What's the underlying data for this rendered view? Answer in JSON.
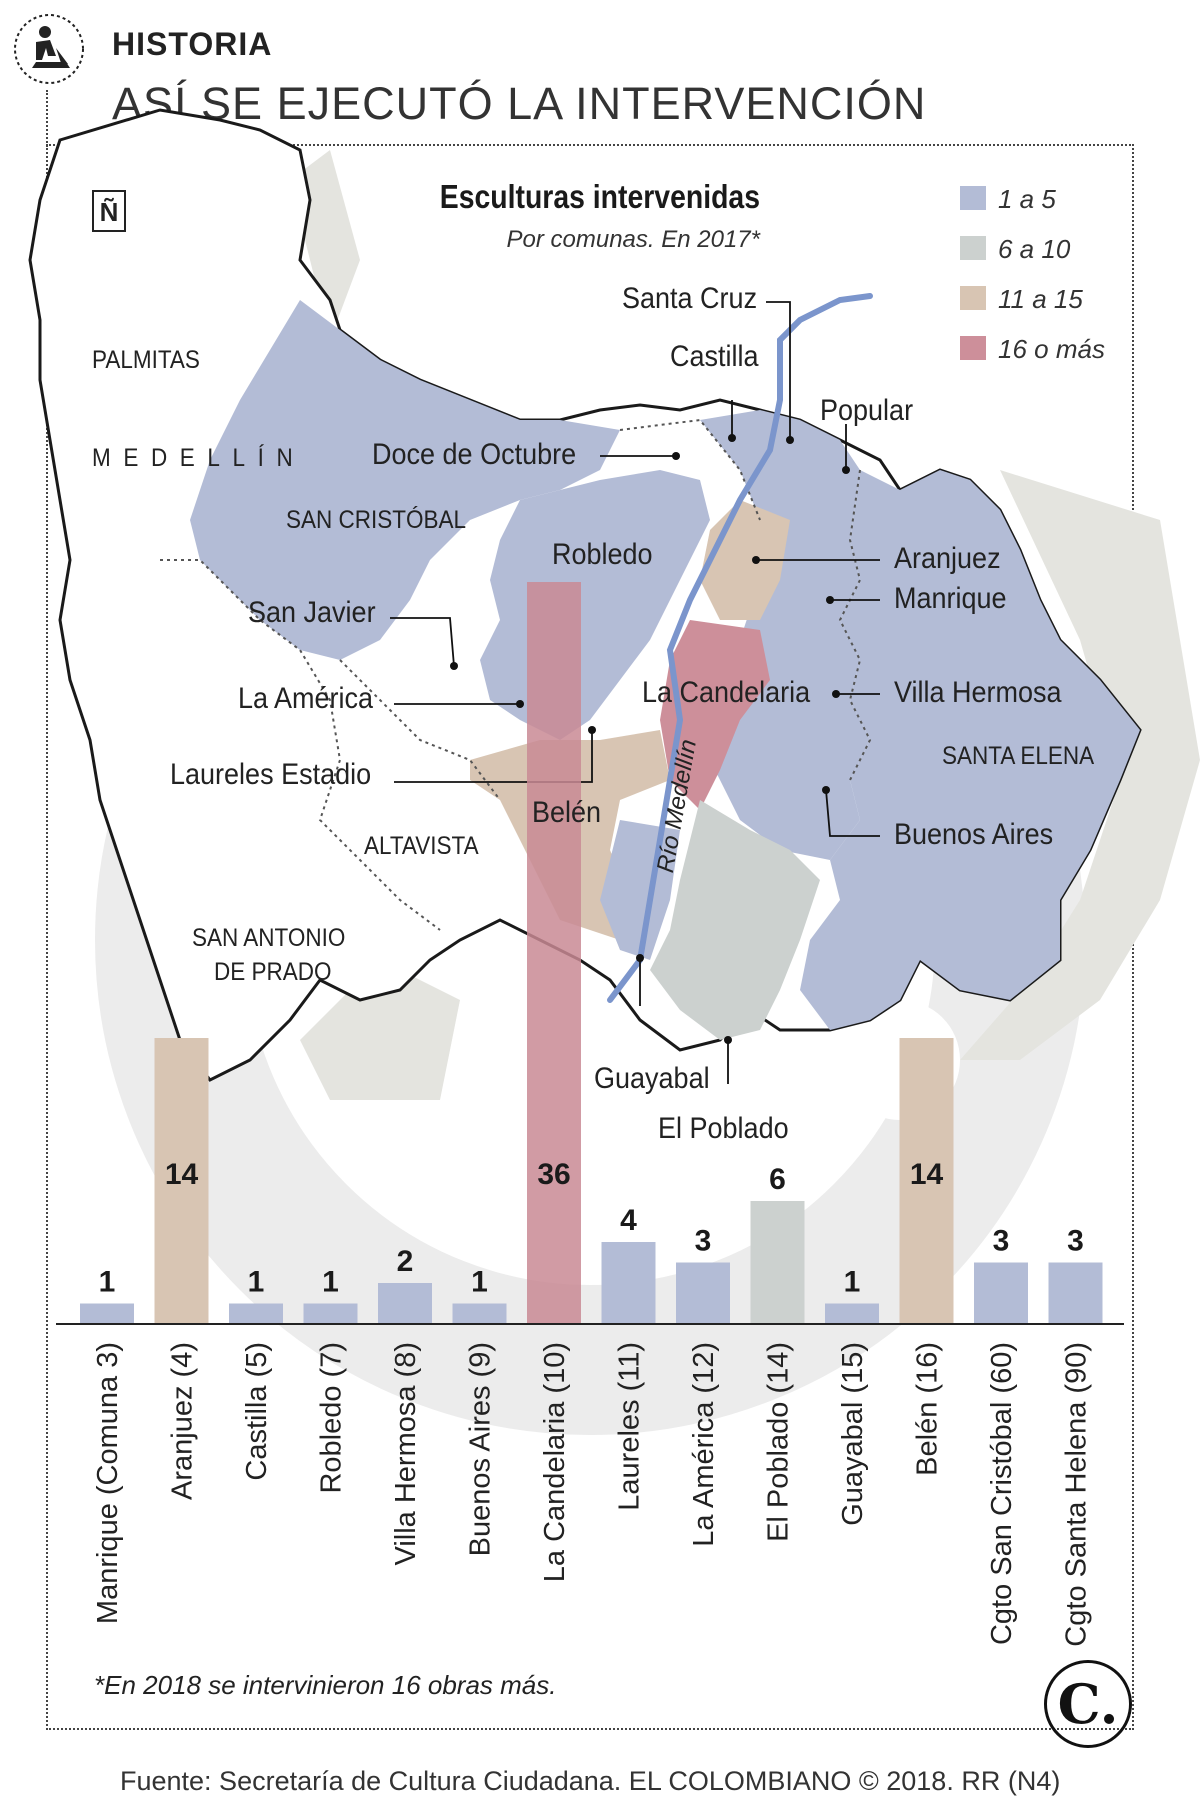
{
  "header": {
    "section_label": "HISTORIA",
    "headline": "ASÍ SE EJECUTÓ LA INTERVENCIÓN"
  },
  "map": {
    "title": "Esculturas intervenidas",
    "subtitle": "Por comunas. En 2017*",
    "north_symbol": "Ñ",
    "river_label": "Río Medellín",
    "legend": [
      {
        "label": "1 a 5",
        "color": "#b3bcd6"
      },
      {
        "label": "6 a 10",
        "color": "#ccd1cf"
      },
      {
        "label": "11 a 15",
        "color": "#d8c5b3"
      },
      {
        "label": "16 o más",
        "color": "#cd8f9a"
      }
    ],
    "labels": {
      "palmitas": "PALMITAS",
      "medellin": "MEDELLÍN",
      "san_cristobal": "SAN CRISTÓBAL",
      "altavista": "ALTAVISTA",
      "san_antonio_1": "SAN ANTONIO",
      "san_antonio_2": "DE PRADO",
      "santa_elena": "SANTA ELENA",
      "santa_cruz": "Santa Cruz",
      "castilla": "Castilla",
      "popular": "Popular",
      "doce_de_octubre": "Doce de Octubre",
      "robledo": "Robledo",
      "aranjuez": "Aranjuez",
      "manrique": "Manrique",
      "san_javier": "San Javier",
      "la_america": "La América",
      "la_candelaria": "La Candelaria",
      "villa_hermosa": "Villa Hermosa",
      "laureles_estadio": "Laureles Estadio",
      "belen": "Belén",
      "buenos_aires": "Buenos Aires",
      "guayabal": "Guayabal",
      "el_poblado": "El Poblado"
    }
  },
  "chart_data": {
    "type": "bar",
    "categories": [
      "Manrique (Comuna 3)",
      "Aranjuez (4)",
      "Castilla (5)",
      "Robledo (7)",
      "Villa Hermosa (8)",
      "Buenos Aires (9)",
      "La Candelaria (10)",
      "Laureles (11)",
      "La América (12)",
      "El Poblado (14)",
      "Guayabal (15)",
      "Belén (16)",
      "Cgto San Cristóbal (60)",
      "Cgto Santa Helena (90)"
    ],
    "values": [
      1,
      14,
      1,
      1,
      2,
      1,
      36,
      4,
      3,
      6,
      1,
      14,
      3,
      3
    ],
    "value_labels": [
      "1",
      "14",
      "1",
      "1",
      "2",
      "1",
      "36",
      "4",
      "3",
      "6",
      "1",
      "14",
      "3",
      "3"
    ],
    "ylim": [
      0,
      36
    ],
    "grid": false,
    "colors": {
      "1 a 5": "#b3bcd6",
      "6 a 10": "#ccd1cf",
      "11 a 15": "#d8c5b3",
      "16 o más": "#c98a94"
    }
  },
  "footer": {
    "footnote": "*En 2018 se intervinieron 16 obras más.",
    "source": "Fuente: Secretaría de Cultura Ciudadana. EL COLOMBIANO © 2018. RR (N4)",
    "logo_text": "C."
  }
}
